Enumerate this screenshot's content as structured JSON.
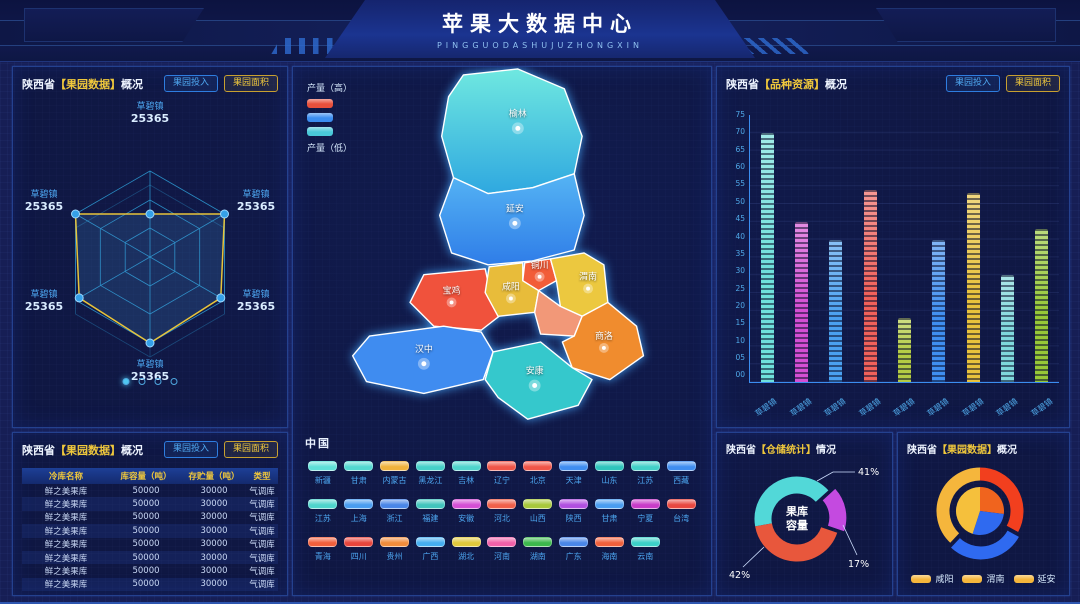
{
  "header": {
    "title": "苹果大数据中心",
    "subtitle": "PINGGUODASHUJUZHONGXIN"
  },
  "buttons": {
    "invest": "果园投入",
    "area": "果园面积"
  },
  "panels": {
    "orchard_radar": {
      "prefix": "陕西省",
      "bracket": "【果园数据】",
      "suffix": "概况"
    },
    "orchard_table": {
      "prefix": "陕西省",
      "bracket": "【果园数据】",
      "suffix": "概况"
    },
    "variety": {
      "prefix": "陕西省",
      "bracket": "【品种资源】",
      "suffix": "概况"
    },
    "storage": {
      "prefix": "陕西省",
      "bracket": "【仓储统计】",
      "suffix": "情况"
    },
    "orchard_pie": {
      "prefix": "陕西省",
      "bracket": "【果园数据】",
      "suffix": "概况"
    }
  },
  "radar": {
    "labels": [
      {
        "name": "草碧镇",
        "value": "25365"
      },
      {
        "name": "草碧镇",
        "value": "25365"
      },
      {
        "name": "草碧镇",
        "value": "25365"
      },
      {
        "name": "草碧镇",
        "value": "25365"
      },
      {
        "name": "草碧镇",
        "value": "25365"
      },
      {
        "name": "草碧镇",
        "value": "25365"
      }
    ],
    "pagination_dots": 4
  },
  "table": {
    "headers": [
      "冷库名称",
      "库容量（吨）",
      "存贮量（吨）",
      "类型"
    ],
    "rows": [
      [
        "鲜之美果库",
        "50000",
        "30000",
        "气调库"
      ],
      [
        "鲜之美果库",
        "50000",
        "30000",
        "气调库"
      ],
      [
        "鲜之美果库",
        "50000",
        "30000",
        "气调库"
      ],
      [
        "鲜之美果库",
        "50000",
        "30000",
        "气调库"
      ],
      [
        "鲜之美果库",
        "50000",
        "30000",
        "气调库"
      ],
      [
        "鲜之美果库",
        "50000",
        "30000",
        "气调库"
      ],
      [
        "鲜之美果库",
        "50000",
        "30000",
        "气调库"
      ],
      [
        "鲜之美果库",
        "50000",
        "30000",
        "气调库"
      ]
    ]
  },
  "map": {
    "legend_high": "产量（高）",
    "legend_low": "产量（低）",
    "legend_colors": [
      "#e8503c",
      "#3b8df0",
      "#49c8d8"
    ],
    "regions": [
      {
        "name": "榆林",
        "color": "#3fc8d4"
      },
      {
        "name": "延安",
        "color": "#3f96ec"
      },
      {
        "name": "铜川",
        "color": "#f25c38"
      },
      {
        "name": "渭南",
        "color": "#ecc83f"
      },
      {
        "name": "咸阳",
        "color": "#e8bc3a"
      },
      {
        "name": "宝鸡",
        "color": "#f0523c"
      },
      {
        "name": "商洛",
        "color": "#f08c2e"
      },
      {
        "name": "汉中",
        "color": "#3f8cf0"
      },
      {
        "name": "安康",
        "color": "#35c8cc"
      }
    ]
  },
  "china": {
    "label": "中国",
    "provinces": [
      {
        "name": "新疆",
        "color": "#5ee0d8"
      },
      {
        "name": "甘肃",
        "color": "#52d8d0"
      },
      {
        "name": "内蒙古",
        "color": "#f0b23c"
      },
      {
        "name": "黑龙江",
        "color": "#45d0c8"
      },
      {
        "name": "吉林",
        "color": "#4fd4cc"
      },
      {
        "name": "辽宁",
        "color": "#f05548"
      },
      {
        "name": "北京",
        "color": "#f05548"
      },
      {
        "name": "天津",
        "color": "#3f8df0"
      },
      {
        "name": "山东",
        "color": "#2ec4bc"
      },
      {
        "name": "江苏",
        "color": "#42d0c8"
      },
      {
        "name": "西藏",
        "color": "#3f8df0"
      },
      {
        "name": "江苏",
        "color": "#4fd4cc"
      },
      {
        "name": "上海",
        "color": "#4a9df0"
      },
      {
        "name": "浙江",
        "color": "#4a86e8"
      },
      {
        "name": "福建",
        "color": "#42c4bc"
      },
      {
        "name": "安徽",
        "color": "#d44fd4"
      },
      {
        "name": "河北",
        "color": "#f0604a"
      },
      {
        "name": "山西",
        "color": "#a8c83c"
      },
      {
        "name": "陕西",
        "color": "#b050e0"
      },
      {
        "name": "甘肃",
        "color": "#4a9df0"
      },
      {
        "name": "宁夏",
        "color": "#c83cc8"
      },
      {
        "name": "台湾",
        "color": "#e84840"
      },
      {
        "name": "青海",
        "color": "#f05f3c"
      },
      {
        "name": "四川",
        "color": "#e8453c"
      },
      {
        "name": "贵州",
        "color": "#f08c3c"
      },
      {
        "name": "广西",
        "color": "#45aef0"
      },
      {
        "name": "湖北",
        "color": "#e0c83c"
      },
      {
        "name": "河南",
        "color": "#f060a8"
      },
      {
        "name": "湖南",
        "color": "#3cb84c"
      },
      {
        "name": "广东",
        "color": "#4a86e8"
      },
      {
        "name": "海南",
        "color": "#f0603c"
      },
      {
        "name": "云南",
        "color": "#3cd0c8"
      }
    ]
  },
  "chart_data": [
    {
      "type": "radar",
      "title": "陕西省【果园数据】概况",
      "categories": [
        "草碧镇",
        "草碧镇",
        "草碧镇",
        "草碧镇",
        "草碧镇",
        "草碧镇"
      ],
      "values": [
        25365,
        25365,
        25365,
        25365,
        25365,
        25365
      ]
    },
    {
      "type": "bar",
      "title": "陕西省【品种资源】概况",
      "categories": [
        "草碧镇",
        "草碧镇",
        "草碧镇",
        "草碧镇",
        "草碧镇",
        "草碧镇",
        "草碧镇",
        "草碧镇",
        "草碧镇"
      ],
      "values": [
        70,
        45,
        40,
        54,
        18,
        40,
        53,
        30,
        43
      ],
      "ylim": [
        0,
        75
      ],
      "ytick_step": 5,
      "yticks": [
        "75",
        "70",
        "65",
        "60",
        "55",
        "50",
        "45",
        "40",
        "35",
        "30",
        "25",
        "20",
        "15",
        "10",
        "05",
        "00"
      ],
      "bars": [
        {
          "v": 70,
          "color": "#6fe0dc"
        },
        {
          "v": 45,
          "color": "#d44fd4"
        },
        {
          "v": 40,
          "color": "#4aa0f0"
        },
        {
          "v": 54,
          "color": "#f0605a"
        },
        {
          "v": 18,
          "color": "#b4cc44"
        },
        {
          "v": 40,
          "color": "#3f8ef0"
        },
        {
          "v": 53,
          "color": "#e8c23c"
        },
        {
          "v": 30,
          "color": "#7fd8dc"
        },
        {
          "v": 43,
          "color": "#96c838"
        }
      ]
    },
    {
      "type": "pie",
      "title": "陕西省【仓储统计】情况",
      "center_label": "果库容量",
      "center_lines": [
        "果库",
        "容量"
      ],
      "slices": [
        {
          "label": "41%",
          "value": 41,
          "color": "#52d8d8",
          "explode": 0
        },
        {
          "label": "17%",
          "value": 17,
          "color": "#c44ae0",
          "explode": 7
        },
        {
          "label": "42%",
          "value": 42,
          "color": "#e8573c",
          "explode": 0
        }
      ]
    },
    {
      "type": "pie",
      "title": "陕西省【果园数据】概况",
      "rings": [
        {
          "name": "outer",
          "slices": [
            {
              "label": "渭南",
              "value": 33,
              "color": "#f23f1e",
              "explode": 0
            },
            {
              "label": "延安",
              "value": 29,
              "color": "#2f6af0",
              "explode": 5
            },
            {
              "label": "咸阳",
              "value": 38,
              "color": "#f5b63c",
              "explode": 0
            }
          ]
        },
        {
          "name": "inner",
          "slices": [
            {
              "label": "渭南",
              "value": 27,
              "color": "#f0641e",
              "explode": 0
            },
            {
              "label": "延安",
              "value": 28,
              "color": "#2f6af0",
              "explode": 0
            },
            {
              "label": "咸阳",
              "value": 45,
              "color": "#f5c03c",
              "explode": 0
            }
          ]
        }
      ],
      "legend": [
        "咸阳",
        "渭南",
        "延安"
      ]
    }
  ]
}
